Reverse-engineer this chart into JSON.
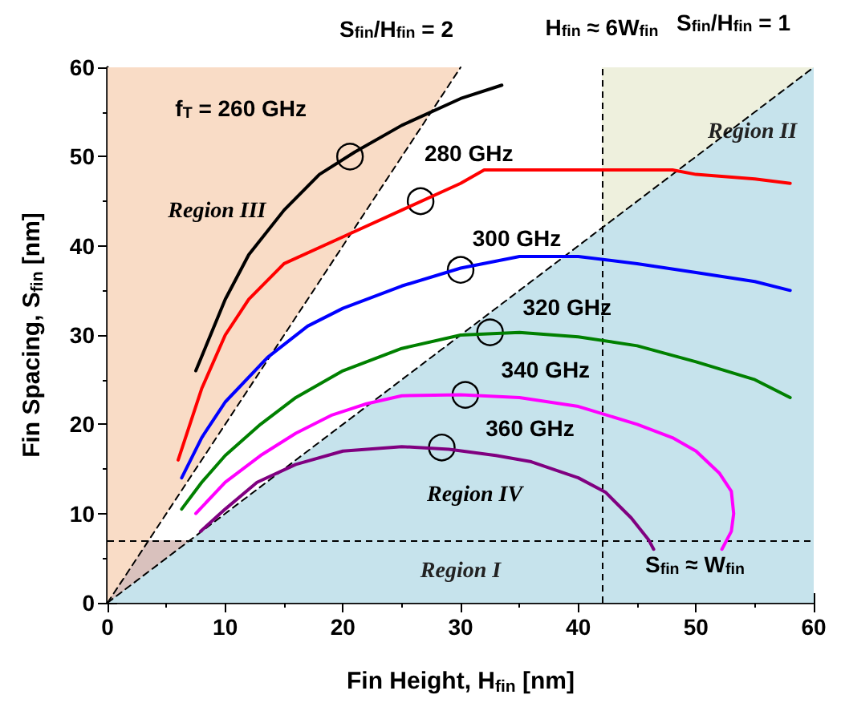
{
  "chart_data": {
    "type": "line",
    "xlabel": "Fin Height, H$_{fin}$ [nm]",
    "ylabel": "Fin Spacing, S$_{fin}$ [nm]",
    "xlim": [
      0,
      60
    ],
    "ylim": [
      0,
      60
    ],
    "xticks": [
      0,
      10,
      20,
      30,
      40,
      50,
      60
    ],
    "yticks": [
      0,
      10,
      20,
      30,
      40,
      50,
      60
    ],
    "grid": false,
    "legend": false,
    "marker": "none",
    "series": [
      {
        "type": "area",
        "color": "#f9dcc6",
        "line_style": "dashed",
        "x": [
          0,
          30
        ],
        "values": [
          0,
          60
        ]
      },
      {
        "type": "area",
        "color": "#c6e3ec",
        "line_style": "dashed",
        "x": [
          0,
          60
        ],
        "values": [
          0,
          60
        ]
      },
      {
        "color": "#000000",
        "x": [
          7.5,
          10,
          12,
          15,
          18,
          21,
          25,
          30,
          33.5
        ],
        "values": [
          26,
          34,
          39,
          44,
          48,
          50.5,
          53.5,
          56.5,
          58
        ]
      },
      {
        "color": "#ff0000",
        "x": [
          6,
          8,
          10,
          12,
          15,
          20,
          25,
          30,
          32,
          40,
          48,
          50,
          55,
          58
        ],
        "values": [
          16,
          24,
          30,
          34,
          38,
          41,
          44,
          47,
          48.5,
          48.5,
          48.5,
          48,
          47.5,
          47
        ]
      },
      {
        "color": "#0000ff",
        "x": [
          6.3,
          8,
          10,
          13.6,
          17,
          20,
          25,
          30,
          35,
          40,
          45,
          50,
          55,
          58
        ],
        "values": [
          14,
          18.5,
          22.5,
          27.5,
          31,
          33,
          35.5,
          37.5,
          38.8,
          38.8,
          38,
          37,
          36,
          35
        ]
      },
      {
        "color": "#008000",
        "x": [
          6.3,
          8,
          10,
          13,
          16,
          20,
          25,
          30,
          35,
          40,
          45,
          50,
          55,
          58
        ],
        "values": [
          10.5,
          13.5,
          16.5,
          20,
          23,
          26,
          28.5,
          30,
          30.3,
          29.8,
          28.8,
          27,
          25,
          23
        ]
      },
      {
        "color": "#ff00ff",
        "x": [
          7.5,
          10,
          13,
          16,
          19,
          22,
          25,
          30,
          35,
          40,
          45,
          48,
          50,
          52,
          53,
          53.2,
          53,
          52.2
        ],
        "values": [
          10,
          13.5,
          16.5,
          19,
          21,
          22.3,
          23.2,
          23.3,
          23,
          22,
          20,
          18.5,
          17,
          14.5,
          12.5,
          10,
          8,
          6
        ]
      },
      {
        "color": "#800080",
        "x": [
          7.9,
          10,
          12.7,
          16,
          20,
          25,
          29,
          33,
          36,
          40,
          42.3,
          44.5,
          46,
          46.4
        ],
        "values": [
          8,
          10.5,
          13.5,
          15.5,
          17,
          17.5,
          17.2,
          16.5,
          15.8,
          14,
          12.4,
          9.5,
          7,
          6
        ]
      }
    ],
    "bands": [
      {
        "axis": "x",
        "from": 42,
        "to": 60,
        "label": "Region II",
        "color": "#e3e6c6"
      },
      {
        "axis": "y",
        "from": 0,
        "to": 7,
        "label": "Region I",
        "color": "#d9c1bd"
      }
    ],
    "ref_lines": [
      {
        "axis": "x",
        "value": 42,
        "label": "H$_{fin}$ ≈ 6W$_{fin}$",
        "line_style": "dashed"
      },
      {
        "axis": "y",
        "value": 7,
        "label": "S$_{fin}$ ≈ W$_{fin}$",
        "line_style": "dashed"
      }
    ],
    "annotations": [
      {
        "text": "f$_{T}$ = 260 GHz",
        "x": 20.6,
        "y": 50
      },
      {
        "text": "280 GHz",
        "x": 26.6,
        "y": 45
      },
      {
        "text": "300 GHz",
        "x": 30,
        "y": 37.3
      },
      {
        "text": "320 GHz",
        "x": 32.5,
        "y": 30.3
      },
      {
        "text": "340 GHz",
        "x": 30.4,
        "y": 23.3
      },
      {
        "text": "360 GHz",
        "x": 28.4,
        "y": 17.4
      },
      "Region III",
      "Region IV",
      {
        "text": "S$_{fin}$/H$_{fin}$ = 2",
        "x": 30,
        "y": 60
      },
      {
        "text": "S$_{fin}$/H$_{fin}$ = 1",
        "x": 60,
        "y": 60
      }
    ]
  }
}
